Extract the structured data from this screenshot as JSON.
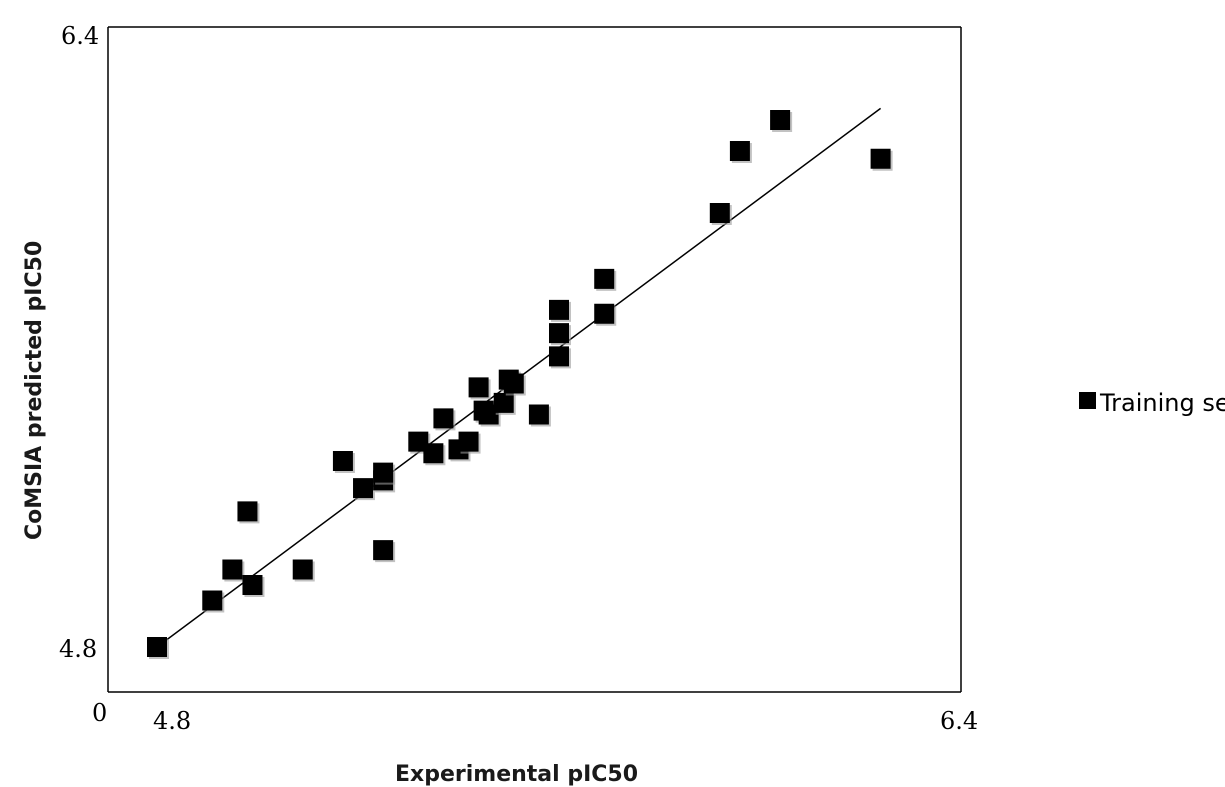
{
  "chart_data": {
    "type": "scatter",
    "xlabel": "Experimental pIC50",
    "ylabel": "CoMSIA predicted pIC50",
    "origin_label": "0",
    "x_ticks": [
      "4.8",
      "6.4"
    ],
    "y_ticks": [
      "4.8",
      "6.4"
    ],
    "xlim": [
      4.7,
      6.4
    ],
    "ylim": [
      4.7,
      6.4
    ],
    "grid": false,
    "legend_position": "right",
    "series": [
      {
        "name": "Training set",
        "marker": "square",
        "color": "#000000",
        "points": [
          [
            4.8,
            4.8
          ],
          [
            4.91,
            4.92
          ],
          [
            4.95,
            5.0
          ],
          [
            4.98,
            5.15
          ],
          [
            4.99,
            4.96
          ],
          [
            5.09,
            5.0
          ],
          [
            5.17,
            5.28
          ],
          [
            5.21,
            5.21
          ],
          [
            5.25,
            5.05
          ],
          [
            5.25,
            5.23
          ],
          [
            5.25,
            5.25
          ],
          [
            5.32,
            5.33
          ],
          [
            5.35,
            5.3
          ],
          [
            5.37,
            5.39
          ],
          [
            5.4,
            5.31
          ],
          [
            5.42,
            5.33
          ],
          [
            5.44,
            5.47
          ],
          [
            5.45,
            5.41
          ],
          [
            5.46,
            5.4
          ],
          [
            5.49,
            5.43
          ],
          [
            5.5,
            5.49
          ],
          [
            5.51,
            5.48
          ],
          [
            5.56,
            5.4
          ],
          [
            5.6,
            5.55
          ],
          [
            5.6,
            5.61
          ],
          [
            5.6,
            5.67
          ],
          [
            5.69,
            5.66
          ],
          [
            5.69,
            5.75
          ],
          [
            5.92,
            5.92
          ],
          [
            5.96,
            6.08
          ],
          [
            6.04,
            6.16
          ],
          [
            6.24,
            6.06
          ]
        ]
      }
    ],
    "fit_line": {
      "x": [
        4.8,
        6.24
      ],
      "y": [
        4.8,
        6.19
      ]
    }
  }
}
